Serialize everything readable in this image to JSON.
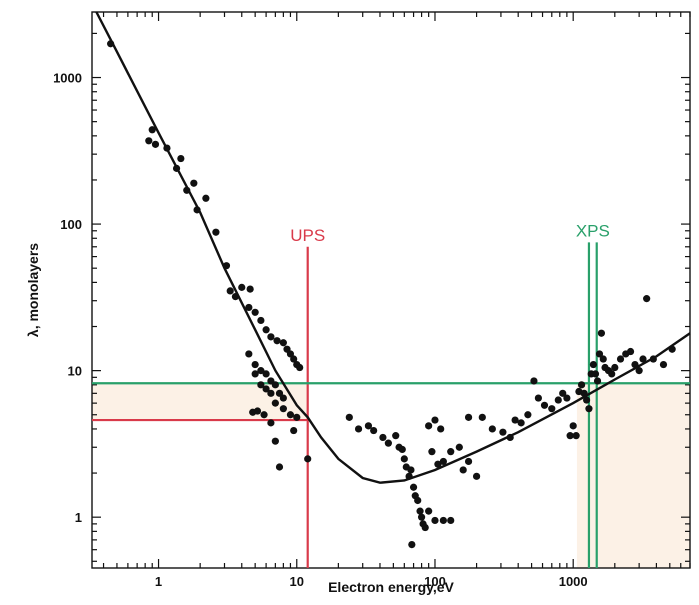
{
  "chart_data": {
    "type": "scatter",
    "xlabel": "Electron energy,eV",
    "ylabel": "λ, monolayers",
    "x_scale": "log",
    "y_scale": "log",
    "xlim": [
      0.33,
      7000
    ],
    "ylim": [
      0.45,
      2800
    ],
    "x_ticks": [
      1,
      10,
      100,
      1000
    ],
    "x_tick_labels": [
      "1",
      "10",
      "100",
      "1000"
    ],
    "y_ticks": [
      1,
      10,
      100,
      1000
    ],
    "y_tick_labels": [
      "1",
      "10",
      "100",
      "1000"
    ],
    "grid": false,
    "legend": "none",
    "colors": {
      "points": "#111111",
      "curve": "#111111",
      "ups": "#d93a4a",
      "xps": "#29a06a",
      "band_fill": "#fbeee0"
    },
    "annotations": [
      {
        "text": "UPS",
        "color": "#d93a4a"
      },
      {
        "text": "XPS",
        "color": "#29a06a"
      }
    ],
    "ups": {
      "label": "UPS",
      "energy": 12,
      "lambda": 4.6
    },
    "xps": {
      "label": "XPS",
      "energies": [
        1300,
        1480
      ],
      "lambda": 8.2
    },
    "curve": {
      "x": [
        0.33,
        0.5,
        1,
        2,
        3,
        5,
        7,
        10,
        12,
        15,
        20,
        30,
        40,
        60,
        100,
        200,
        400,
        1000,
        2000,
        4000,
        7000
      ],
      "y": [
        3200,
        1500,
        420,
        120,
        50,
        19,
        10,
        5.8,
        4.8,
        3.5,
        2.5,
        1.85,
        1.72,
        1.78,
        2.1,
        2.8,
        3.8,
        6,
        8.7,
        12.5,
        18
      ]
    },
    "points": [
      [
        0.45,
        1700
      ],
      [
        0.85,
        370
      ],
      [
        0.9,
        440
      ],
      [
        0.95,
        350
      ],
      [
        1.15,
        330
      ],
      [
        1.35,
        240
      ],
      [
        1.45,
        280
      ],
      [
        1.6,
        170
      ],
      [
        1.8,
        190
      ],
      [
        1.9,
        125
      ],
      [
        2.2,
        150
      ],
      [
        2.6,
        88
      ],
      [
        3.1,
        52
      ],
      [
        3.3,
        35
      ],
      [
        3.6,
        32
      ],
      [
        4.0,
        37
      ],
      [
        4.6,
        36
      ],
      [
        4.5,
        27
      ],
      [
        5.0,
        25
      ],
      [
        5.5,
        22
      ],
      [
        6.0,
        19
      ],
      [
        6.5,
        17
      ],
      [
        7.2,
        16
      ],
      [
        8.0,
        15.5
      ],
      [
        8.5,
        14
      ],
      [
        9.0,
        13
      ],
      [
        9.5,
        12
      ],
      [
        10.0,
        11
      ],
      [
        10.5,
        10.5
      ],
      [
        4.5,
        13
      ],
      [
        5.0,
        11
      ],
      [
        5.5,
        10
      ],
      [
        6.0,
        9.5
      ],
      [
        6.5,
        8.5
      ],
      [
        7.0,
        8
      ],
      [
        7.5,
        7
      ],
      [
        8.0,
        6.5
      ],
      [
        5.0,
        9.5
      ],
      [
        5.5,
        8
      ],
      [
        6.0,
        7.5
      ],
      [
        6.5,
        7
      ],
      [
        7.0,
        6
      ],
      [
        8.0,
        5.5
      ],
      [
        9.0,
        5
      ],
      [
        10.0,
        4.8
      ],
      [
        4.8,
        5.2
      ],
      [
        5.2,
        5.3
      ],
      [
        5.8,
        5.0
      ],
      [
        6.5,
        4.4
      ],
      [
        7.0,
        3.3
      ],
      [
        7.5,
        2.2
      ],
      [
        9.5,
        3.9
      ],
      [
        12,
        2.5
      ],
      [
        24,
        4.8
      ],
      [
        28,
        4.0
      ],
      [
        33,
        4.2
      ],
      [
        36,
        3.9
      ],
      [
        42,
        3.5
      ],
      [
        46,
        3.2
      ],
      [
        52,
        3.6
      ],
      [
        55,
        3.0
      ],
      [
        58,
        2.9
      ],
      [
        60,
        2.5
      ],
      [
        62,
        2.2
      ],
      [
        65,
        1.9
      ],
      [
        67,
        2.1
      ],
      [
        70,
        1.6
      ],
      [
        72,
        1.4
      ],
      [
        75,
        1.3
      ],
      [
        78,
        1.1
      ],
      [
        80,
        1.0
      ],
      [
        82,
        0.9
      ],
      [
        85,
        0.85
      ],
      [
        68,
        0.65
      ],
      [
        90,
        1.1
      ],
      [
        100,
        0.95
      ],
      [
        115,
        0.95
      ],
      [
        130,
        0.95
      ],
      [
        95,
        2.8
      ],
      [
        105,
        2.3
      ],
      [
        115,
        2.4
      ],
      [
        130,
        2.8
      ],
      [
        150,
        3.0
      ],
      [
        160,
        2.1
      ],
      [
        175,
        2.4
      ],
      [
        200,
        1.9
      ],
      [
        90,
        4.2
      ],
      [
        100,
        4.6
      ],
      [
        110,
        4.0
      ],
      [
        175,
        4.8
      ],
      [
        220,
        4.8
      ],
      [
        260,
        4.0
      ],
      [
        310,
        3.8
      ],
      [
        350,
        3.5
      ],
      [
        380,
        4.6
      ],
      [
        420,
        4.4
      ],
      [
        470,
        5.0
      ],
      [
        520,
        8.5
      ],
      [
        560,
        6.5
      ],
      [
        620,
        5.8
      ],
      [
        700,
        5.5
      ],
      [
        780,
        6.3
      ],
      [
        840,
        7.0
      ],
      [
        900,
        6.5
      ],
      [
        950,
        3.6
      ],
      [
        1000,
        4.2
      ],
      [
        1050,
        3.6
      ],
      [
        1100,
        7.2
      ],
      [
        1150,
        8.0
      ],
      [
        1200,
        7.0
      ],
      [
        1250,
        6.3
      ],
      [
        1300,
        5.5
      ],
      [
        1350,
        9.5
      ],
      [
        1400,
        11
      ],
      [
        1450,
        9.5
      ],
      [
        1500,
        8.5
      ],
      [
        1550,
        13
      ],
      [
        1600,
        18
      ],
      [
        1650,
        12
      ],
      [
        1700,
        10.5
      ],
      [
        1800,
        10
      ],
      [
        1900,
        9.5
      ],
      [
        2000,
        10.5
      ],
      [
        2200,
        12
      ],
      [
        2400,
        13
      ],
      [
        2600,
        13.5
      ],
      [
        2800,
        11
      ],
      [
        3000,
        10
      ],
      [
        3200,
        12
      ],
      [
        3400,
        31
      ],
      [
        3800,
        12
      ],
      [
        4500,
        11
      ],
      [
        5200,
        14
      ]
    ]
  },
  "axes": {
    "xlabel": "Electron energy,eV",
    "ylabel": "λ, monolayers"
  },
  "labels": {
    "ups": "UPS",
    "xps": "XPS"
  }
}
